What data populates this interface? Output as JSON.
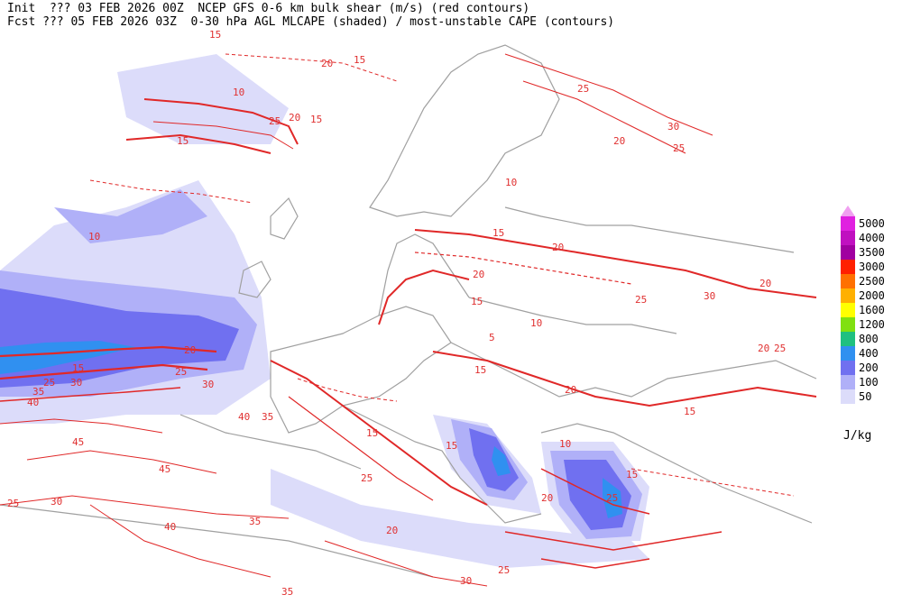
{
  "header": {
    "line1": "Init  ??? 03 FEB 2026 00Z  NCEP GFS 0-6 km bulk shear (m/s) (red contours)",
    "line2": "Fcst ??? 05 FEB 2026 03Z  0-30 hPa AGL MLCAPE (shaded) / most-unstable CAPE (contours)"
  },
  "legend": {
    "top_color": "#f0a0f0",
    "items": [
      {
        "label": "5000",
        "color": "#e020e0"
      },
      {
        "label": "4000",
        "color": "#c010c0"
      },
      {
        "label": "3500",
        "color": "#a000a0"
      },
      {
        "label": "3000",
        "color": "#ff2000"
      },
      {
        "label": "2500",
        "color": "#ff7000"
      },
      {
        "label": "2000",
        "color": "#ffb000"
      },
      {
        "label": "1600",
        "color": "#ffff00"
      },
      {
        "label": "1200",
        "color": "#80e010"
      },
      {
        "label": "800",
        "color": "#20c080"
      },
      {
        "label": "400",
        "color": "#3090f0"
      },
      {
        "label": "200",
        "color": "#7070f0"
      },
      {
        "label": "100",
        "color": "#b0b0f8"
      },
      {
        "label": "50",
        "color": "#dcdcfa"
      }
    ],
    "units": "J/kg"
  },
  "colors": {
    "shear_contour": "#e02828",
    "coastline": "#a0a0a0",
    "cape_light": "#dcdcfa",
    "cape_mid": "#b0b0f8",
    "cape_dark": "#7070f0",
    "cape_core": "#3090f0"
  },
  "contour_labels": [
    "15",
    "20",
    "15",
    "10",
    "25",
    "20",
    "15",
    "25",
    "20",
    "30",
    "25",
    "20",
    "15",
    "10",
    "15",
    "10",
    "20",
    "25",
    "30",
    "40",
    "35",
    "15",
    "25",
    "30",
    "45",
    "40",
    "35",
    "25",
    "30",
    "35",
    "40",
    "45",
    "15",
    "25",
    "20",
    "15",
    "10",
    "5",
    "15",
    "20",
    "25",
    "30",
    "20",
    "25",
    "20",
    "15",
    "10",
    "15",
    "20",
    "25",
    "30",
    "35",
    "15",
    "20",
    "25"
  ]
}
